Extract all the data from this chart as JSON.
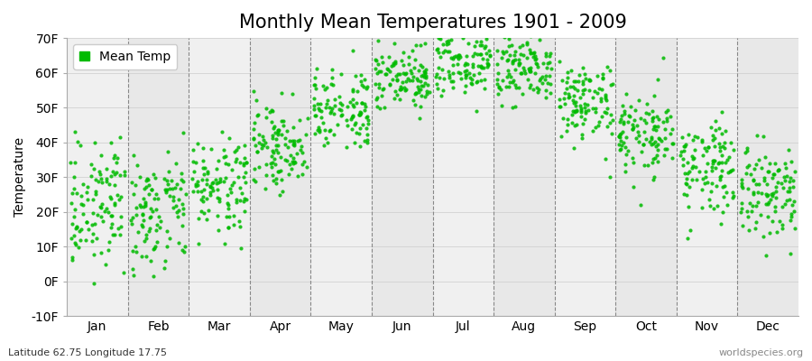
{
  "title": "Monthly Mean Temperatures 1901 - 2009",
  "ylabel": "Temperature",
  "xlabel": "",
  "footer_left": "Latitude 62.75 Longitude 17.75",
  "footer_right": "worldspecies.org",
  "legend_label": "Mean Temp",
  "marker_color": "#00bb00",
  "marker": "o",
  "marker_size": 3,
  "ylim": [
    -10,
    70
  ],
  "yticks": [
    -10,
    0,
    10,
    20,
    30,
    40,
    50,
    60,
    70
  ],
  "ytick_labels": [
    "-10F",
    "0F",
    "10F",
    "20F",
    "30F",
    "40F",
    "50F",
    "60F",
    "70F"
  ],
  "months": [
    "Jan",
    "Feb",
    "Mar",
    "Apr",
    "May",
    "Jun",
    "Jul",
    "Aug",
    "Sep",
    "Oct",
    "Nov",
    "Dec"
  ],
  "background_color": "#ffffff",
  "plot_bg_light": "#f0f0f0",
  "plot_bg_dark": "#e8e8e8",
  "title_fontsize": 15,
  "axis_fontsize": 10,
  "tick_fontsize": 10,
  "monthly_means_c": [
    -5.5,
    -5.8,
    -2.5,
    3.8,
    10.2,
    14.8,
    17.2,
    16.0,
    11.1,
    5.8,
    0.4,
    -3.5
  ],
  "monthly_std_c": [
    4.5,
    5.0,
    3.8,
    3.5,
    3.2,
    3.0,
    2.8,
    2.8,
    3.2,
    3.5,
    4.0,
    4.2
  ]
}
